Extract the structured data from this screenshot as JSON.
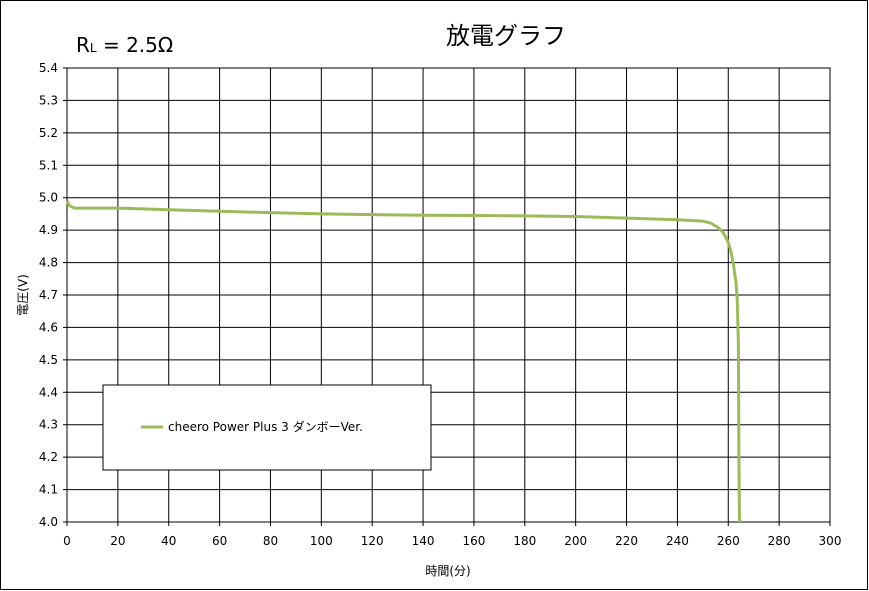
{
  "chart_data": {
    "type": "line",
    "title": "放電グラフ",
    "annotation": {
      "main": "R",
      "sub": "L",
      "rest": " = 2.5Ω"
    },
    "xlabel": "時間(分)",
    "ylabel": "電圧(V)",
    "xlim": [
      0,
      300
    ],
    "ylim": [
      4.0,
      5.4
    ],
    "xticks": [
      0,
      20,
      40,
      60,
      80,
      100,
      120,
      140,
      160,
      180,
      200,
      220,
      240,
      260,
      280,
      300
    ],
    "yticks": [
      4.0,
      4.1,
      4.2,
      4.3,
      4.4,
      4.5,
      4.6,
      4.7,
      4.8,
      4.9,
      5.0,
      5.1,
      5.2,
      5.3,
      5.4
    ],
    "ytick_labels": [
      "4.0",
      "4.1",
      "4.2",
      "4.3",
      "4.4",
      "4.5",
      "4.6",
      "4.7",
      "4.8",
      "4.9",
      "5.0",
      "5.1",
      "5.2",
      "5.3",
      "5.4"
    ],
    "grid": true,
    "legend": {
      "position": "bottom-left"
    },
    "series": [
      {
        "name": "cheero Power  Plus 3 ダンボーVer.",
        "color": "#9bbb59",
        "x": [
          0,
          1,
          3,
          10,
          20,
          40,
          60,
          80,
          100,
          120,
          140,
          160,
          180,
          200,
          220,
          240,
          250,
          253,
          256,
          258,
          260,
          261,
          262,
          263,
          263.5,
          264,
          264.2,
          264.4
        ],
        "y": [
          4.99,
          4.975,
          4.968,
          4.968,
          4.968,
          4.963,
          4.958,
          4.954,
          4.95,
          4.948,
          4.946,
          4.945,
          4.944,
          4.942,
          4.937,
          4.932,
          4.928,
          4.922,
          4.908,
          4.893,
          4.862,
          4.836,
          4.795,
          4.74,
          4.69,
          4.55,
          4.2,
          4.0
        ]
      }
    ]
  }
}
